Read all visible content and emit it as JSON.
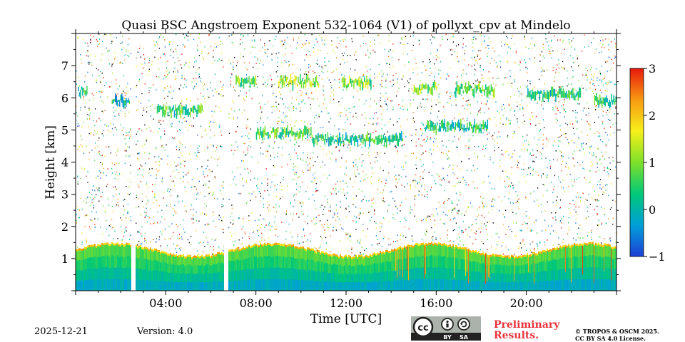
{
  "chart_data": {
    "type": "heatmap",
    "title": "Quasi BSC Angstroem Exponent 532-1064 (V1) of pollyxt_cpv at Mindelo",
    "xlabel": "Time [UTC]",
    "ylabel": "Height [km]",
    "xlim_hours": [
      0,
      24
    ],
    "ylim_km": [
      0,
      8
    ],
    "x_ticks": [
      {
        "hour": 4,
        "label": "04:00"
      },
      {
        "hour": 8,
        "label": "08:00"
      },
      {
        "hour": 12,
        "label": "12:00"
      },
      {
        "hour": 16,
        "label": "16:00"
      },
      {
        "hour": 20,
        "label": "20:00"
      }
    ],
    "y_ticks": [
      {
        "km": 1,
        "label": "1"
      },
      {
        "km": 2,
        "label": "2"
      },
      {
        "km": 3,
        "label": "3"
      },
      {
        "km": 4,
        "label": "4"
      },
      {
        "km": 5,
        "label": "5"
      },
      {
        "km": 6,
        "label": "6"
      },
      {
        "km": 7,
        "label": "7"
      }
    ],
    "colorbar": {
      "range": [
        -1,
        3
      ],
      "ticks": [
        {
          "value": 3,
          "label": "3"
        },
        {
          "value": 2,
          "label": "2"
        },
        {
          "value": 1,
          "label": "1"
        },
        {
          "value": 0,
          "label": "0"
        },
        {
          "value": -1,
          "label": "−1"
        }
      ],
      "colormap": [
        "#1f3fd6",
        "#00a0d8",
        "#00c878",
        "#7ee02a",
        "#f6f01a",
        "#f79a12",
        "#e8180c"
      ]
    },
    "boundary_layer": {
      "top_km_range": [
        1.0,
        1.4
      ],
      "typical_value": 0.3
    },
    "data_gaps_hours": [
      [
        2.45,
        2.65
      ],
      [
        6.55,
        6.72
      ]
    ],
    "aerosol_layers": [
      {
        "start_hour": 0.1,
        "end_hour": 0.5,
        "height_km": 6.2,
        "value": 0.4
      },
      {
        "start_hour": 1.6,
        "end_hour": 2.4,
        "height_km": 5.9,
        "value": 0.2
      },
      {
        "start_hour": 3.6,
        "end_hour": 5.6,
        "height_km": 5.6,
        "value": 0.5
      },
      {
        "start_hour": 7.1,
        "end_hour": 8.0,
        "height_km": 6.5,
        "value": 0.8
      },
      {
        "start_hour": 9.0,
        "end_hour": 10.8,
        "height_km": 6.5,
        "value": 1.0
      },
      {
        "start_hour": 11.8,
        "end_hour": 13.1,
        "height_km": 6.45,
        "value": 0.9
      },
      {
        "start_hour": 8.0,
        "end_hour": 10.5,
        "height_km": 4.9,
        "value": 0.6
      },
      {
        "start_hour": 10.5,
        "end_hour": 14.5,
        "height_km": 4.7,
        "value": 0.3
      },
      {
        "start_hour": 15.0,
        "end_hour": 16.0,
        "height_km": 6.3,
        "value": 0.9
      },
      {
        "start_hour": 16.8,
        "end_hour": 18.6,
        "height_km": 6.25,
        "value": 0.7
      },
      {
        "start_hour": 15.5,
        "end_hour": 18.3,
        "height_km": 5.1,
        "value": 0.4
      },
      {
        "start_hour": 20.0,
        "end_hour": 22.4,
        "height_km": 6.1,
        "value": 0.3
      },
      {
        "start_hour": 23.0,
        "end_hour": 24.0,
        "height_km": 5.9,
        "value": 0.5
      }
    ]
  },
  "footer": {
    "date": "2025-12-21",
    "version": "Version: 4.0",
    "preliminary_line1": "Preliminary",
    "preliminary_line2": "Results.",
    "copyright_line1": "© TROPOS & OSCM 2025.",
    "copyright_line2": "CC BY SA 4.0 License.",
    "license_badge": {
      "cc": "cc",
      "by": "BY",
      "sa": "SA"
    }
  }
}
